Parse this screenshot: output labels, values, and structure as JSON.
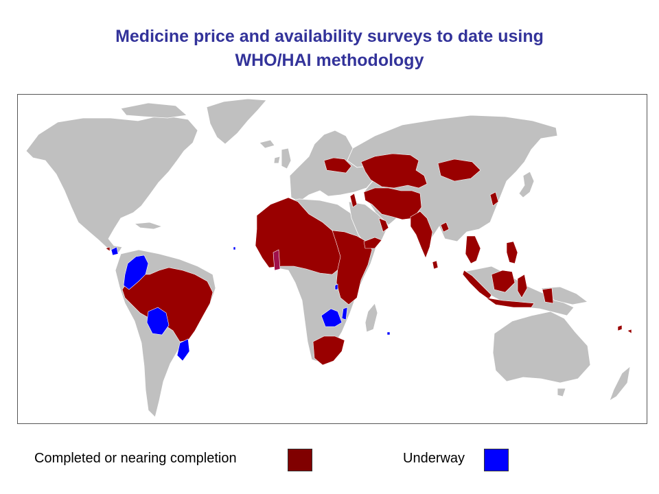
{
  "title": {
    "line1": "Medicine price and availability surveys to date using",
    "line2": "WHO/HAI methodology"
  },
  "map": {
    "colors": {
      "land": "#c0c0c0",
      "completed": "#990000",
      "underway": "#0000ff"
    }
  },
  "legend": {
    "completed_label": "Completed or nearing completion",
    "completed_color": "#800000",
    "underway_label": "Underway",
    "underway_color": "#0000ff"
  }
}
